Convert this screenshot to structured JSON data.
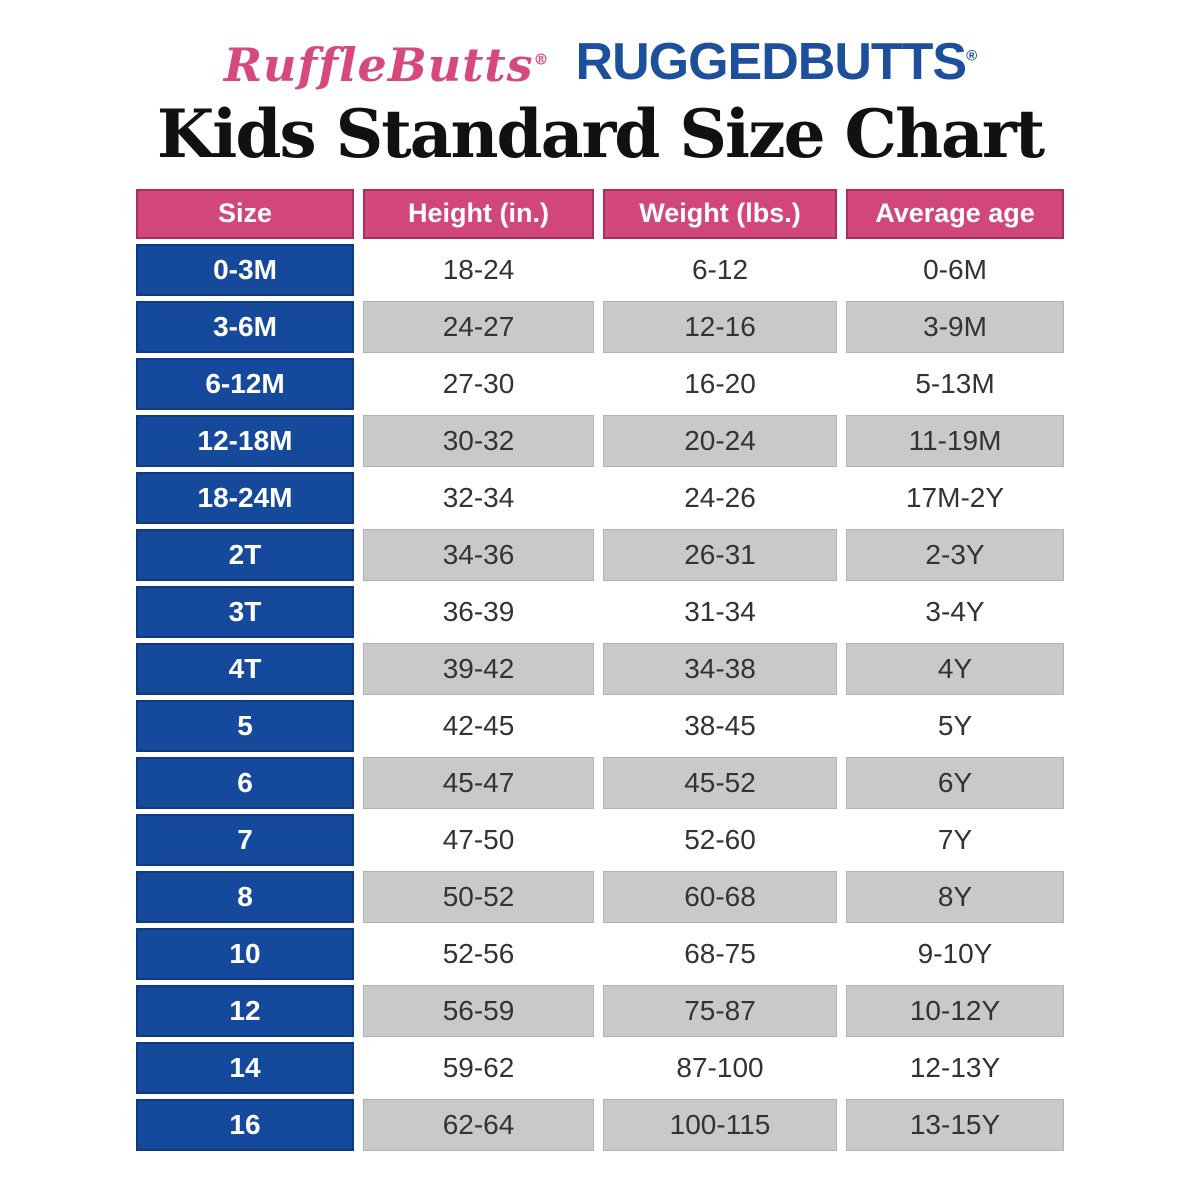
{
  "brand": {
    "rufflebutts_text": "RuffleButts",
    "ruggedbutts_text": "RUGGEDBUTTS",
    "registered_mark": "®",
    "rufflebutts_color": "#d5497d",
    "ruggedbutts_color": "#1c4f9c"
  },
  "colors": {
    "header_pink": "#d2477a",
    "size_column_blue": "#15499c",
    "alt_row_gray": "#c9c9c9",
    "title_black": "#111111"
  },
  "chart_data": {
    "type": "table",
    "title": "Kids Standard Size Chart",
    "columns": [
      "Size",
      "Height (in.)",
      "Weight (lbs.)",
      "Average age"
    ],
    "rows": [
      {
        "size": "0-3M",
        "height": "18-24",
        "weight": "6-12",
        "age": "0-6M"
      },
      {
        "size": "3-6M",
        "height": "24-27",
        "weight": "12-16",
        "age": "3-9M"
      },
      {
        "size": "6-12M",
        "height": "27-30",
        "weight": "16-20",
        "age": "5-13M"
      },
      {
        "size": "12-18M",
        "height": "30-32",
        "weight": "20-24",
        "age": "11-19M"
      },
      {
        "size": "18-24M",
        "height": "32-34",
        "weight": "24-26",
        "age": "17M-2Y"
      },
      {
        "size": "2T",
        "height": "34-36",
        "weight": "26-31",
        "age": "2-3Y"
      },
      {
        "size": "3T",
        "height": "36-39",
        "weight": "31-34",
        "age": "3-4Y"
      },
      {
        "size": "4T",
        "height": "39-42",
        "weight": "34-38",
        "age": "4Y"
      },
      {
        "size": "5",
        "height": "42-45",
        "weight": "38-45",
        "age": "5Y"
      },
      {
        "size": "6",
        "height": "45-47",
        "weight": "45-52",
        "age": "6Y"
      },
      {
        "size": "7",
        "height": "47-50",
        "weight": "52-60",
        "age": "7Y"
      },
      {
        "size": "8",
        "height": "50-52",
        "weight": "60-68",
        "age": "8Y"
      },
      {
        "size": "10",
        "height": "52-56",
        "weight": "68-75",
        "age": "9-10Y"
      },
      {
        "size": "12",
        "height": "56-59",
        "weight": "75-87",
        "age": "10-12Y"
      },
      {
        "size": "14",
        "height": "59-62",
        "weight": "87-100",
        "age": "12-13Y"
      },
      {
        "size": "16",
        "height": "62-64",
        "weight": "100-115",
        "age": "13-15Y"
      }
    ]
  }
}
